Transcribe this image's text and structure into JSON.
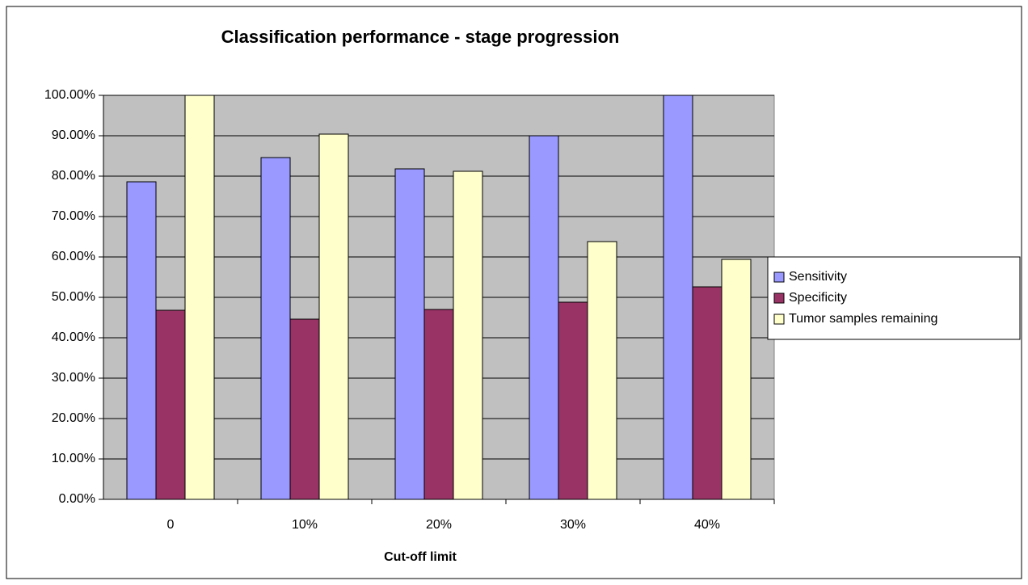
{
  "chart_data": {
    "type": "bar",
    "title": "Classification performance - stage progression",
    "x_label": "Cut-off limit",
    "categories": [
      "0",
      "10%",
      "20%",
      "30%",
      "40%"
    ],
    "series": [
      {
        "name": "Sensitivity",
        "color": "#9999ff",
        "values": [
          78.6,
          84.6,
          81.8,
          90,
          100
        ]
      },
      {
        "name": "Specificity",
        "color": "#993366",
        "values": [
          46.8,
          44.6,
          47,
          48.8,
          52.6
        ]
      },
      {
        "name": "Tumor samples remaining",
        "color": "#ffffcc",
        "values": [
          100,
          90.4,
          81.2,
          63.8,
          59.4
        ]
      }
    ],
    "ylim": [
      0,
      100
    ],
    "yticks": [
      {
        "value": 0,
        "label": "0.00%"
      },
      {
        "value": 10,
        "label": "10.00%"
      },
      {
        "value": 20,
        "label": "20.00%"
      },
      {
        "value": 30,
        "label": "30.00%"
      },
      {
        "value": 40,
        "label": "40.00%"
      },
      {
        "value": 50,
        "label": "50.00%"
      },
      {
        "value": 60,
        "label": "60.00%"
      },
      {
        "value": 70,
        "label": "70.00%"
      },
      {
        "value": 80,
        "label": "80.00%"
      },
      {
        "value": 90,
        "label": "90.00%"
      },
      {
        "value": 100,
        "label": "100.00%"
      }
    ],
    "grid": true,
    "plot_background": "#c0c0c0",
    "legend": "right"
  }
}
